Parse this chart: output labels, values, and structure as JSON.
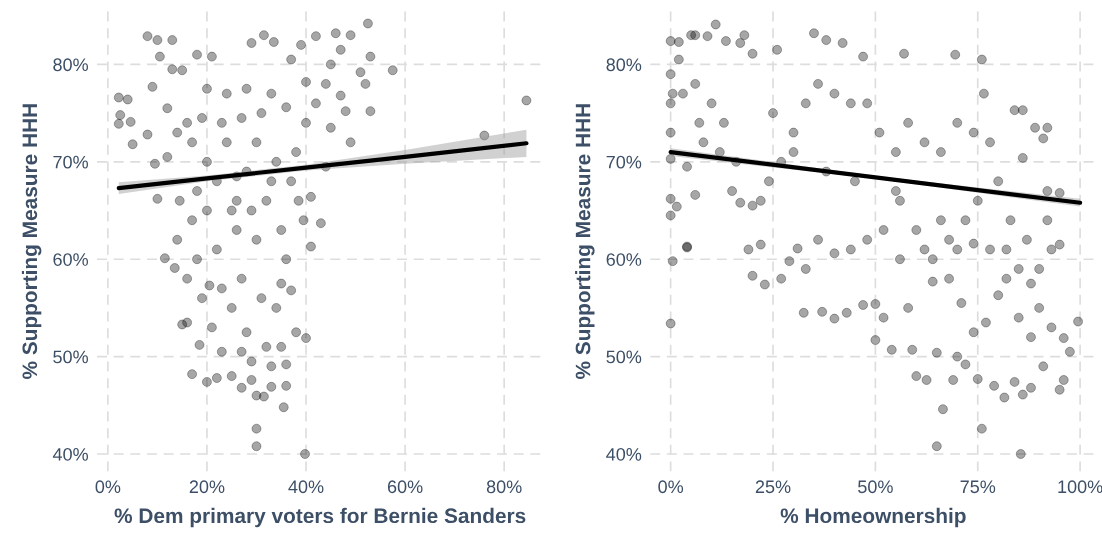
{
  "chart_data": [
    {
      "type": "scatter",
      "xlabel": "% Dem primary voters for Bernie Sanders",
      "ylabel": "% Supporting Measure HHH",
      "grid": true,
      "xlim": [
        -2.2,
        87.9
      ],
      "ylim": [
        38.2,
        85.5
      ],
      "xticks": [
        {
          "value": 0,
          "label": "0%"
        },
        {
          "value": 20,
          "label": "20%"
        },
        {
          "value": 40,
          "label": "40%"
        },
        {
          "value": 60,
          "label": "60%"
        },
        {
          "value": 80,
          "label": "80%"
        }
      ],
      "yticks": [
        {
          "value": 40,
          "label": "40%"
        },
        {
          "value": 50,
          "label": "50%"
        },
        {
          "value": 60,
          "label": "60%"
        },
        {
          "value": 70,
          "label": "70%"
        },
        {
          "value": 80,
          "label": "80%"
        }
      ],
      "series": [
        {
          "marker": "circle",
          "color": "#000000",
          "x": [
            2.2,
            2.5,
            2.2,
            4,
            4.6,
            5,
            8,
            10,
            13,
            10.5,
            9,
            8,
            9.5,
            10,
            11.5,
            13.5,
            15,
            16,
            17,
            20,
            22,
            25,
            27,
            29,
            30,
            31.5,
            35.5,
            30,
            30,
            39.8,
            33,
            36,
            40,
            38,
            84.5,
            76,
            57.5,
            53,
            52.5,
            53,
            49,
            46,
            42,
            31.5,
            29,
            18,
            21,
            49,
            44,
            41,
            43,
            41,
            39.5,
            38.5,
            33.5,
            39,
            51,
            52,
            48,
            45,
            47,
            44,
            40,
            36,
            37,
            33,
            28,
            24,
            20,
            15,
            13,
            12,
            14,
            17,
            20,
            12,
            14.5,
            18,
            22,
            26,
            28,
            24,
            30,
            34,
            38,
            32,
            35,
            36,
            30,
            26,
            22,
            18,
            16,
            19,
            23,
            27,
            31,
            34,
            25,
            21,
            28,
            32,
            23,
            27,
            35,
            18.5,
            29,
            33,
            14,
            17,
            20,
            16,
            19,
            23,
            27,
            31,
            26,
            25,
            29,
            33,
            37,
            40,
            42,
            45,
            47,
            35,
            37,
            20.5,
            36
          ],
          "values": [
            76.6,
            74.8,
            73.9,
            76.4,
            74.1,
            71.8,
            82.9,
            82.5,
            82.5,
            80.8,
            77.7,
            72.8,
            69.8,
            66.2,
            60.1,
            59.1,
            53.3,
            53.5,
            48.2,
            47.4,
            47.8,
            48,
            46.8,
            47.6,
            46,
            45.9,
            44.8,
            42.6,
            40.8,
            40,
            46.9,
            47,
            51.9,
            52.5,
            76.3,
            72.7,
            79.4,
            75.2,
            84.2,
            80.8,
            83,
            83.2,
            82.9,
            83,
            82.2,
            81,
            80.8,
            72,
            69.5,
            66.4,
            63.7,
            61.3,
            64,
            66,
            82.3,
            82,
            79.2,
            78,
            75.2,
            73.5,
            76.8,
            78,
            78.2,
            75.6,
            80.5,
            77,
            77.5,
            77,
            77.5,
            79.4,
            79.5,
            75.5,
            73,
            72,
            70,
            70.5,
            66,
            67,
            68,
            68.5,
            69,
            72,
            72,
            70,
            71,
            66,
            63,
            60,
            62,
            63,
            61,
            60,
            58,
            56,
            57,
            58,
            56,
            55,
            55,
            53,
            52.5,
            51,
            50.5,
            50.5,
            51,
            51.2,
            49.5,
            49,
            62,
            64,
            65,
            74,
            74.5,
            74,
            74.5,
            75,
            66,
            65,
            65,
            68,
            68,
            74,
            76,
            80,
            81.5,
            57.5,
            56.8,
            57.3,
            49.2
          ]
        },
        {
          "type": "line",
          "color": "#000000",
          "x": [
            2.2,
            20,
            40,
            60,
            84.5
          ],
          "values": [
            67.3,
            68.3,
            69.4,
            70.5,
            71.9
          ],
          "lower": [
            66.7,
            68.0,
            69.1,
            69.8,
            70.5
          ],
          "upper": [
            67.9,
            68.6,
            69.7,
            71.2,
            73.3
          ]
        }
      ]
    },
    {
      "type": "scatter",
      "xlabel": "% Homeownership",
      "ylabel": "% Supporting Measure HHH",
      "grid": true,
      "xlim": [
        -5,
        104
      ],
      "ylim": [
        38.2,
        85.5
      ],
      "xticks": [
        {
          "value": 0,
          "label": "0%"
        },
        {
          "value": 25,
          "label": "25%"
        },
        {
          "value": 50,
          "label": "50%"
        },
        {
          "value": 75,
          "label": "75%"
        },
        {
          "value": 100,
          "label": "100%"
        }
      ],
      "yticks": [
        {
          "value": 40,
          "label": "40%"
        },
        {
          "value": 50,
          "label": "50%"
        },
        {
          "value": 60,
          "label": "60%"
        },
        {
          "value": 70,
          "label": "70%"
        },
        {
          "value": 80,
          "label": "80%"
        }
      ],
      "series": [
        {
          "marker": "circle",
          "color": "#000000",
          "x": [
            0,
            0.5,
            0,
            0,
            1.5,
            4,
            4,
            6,
            0,
            2,
            5,
            6,
            9,
            11,
            13.5,
            17,
            18,
            20,
            26,
            35,
            38,
            42,
            47,
            57,
            69.5,
            76,
            76.5,
            0,
            0,
            0,
            0,
            3,
            6,
            10,
            13,
            8,
            4,
            12,
            16,
            15,
            17,
            20,
            22,
            24,
            27,
            30,
            33,
            36,
            40,
            44,
            48,
            51,
            55,
            58,
            62,
            66,
            70,
            74,
            78,
            84,
            86,
            89,
            91,
            92,
            95,
            92,
            86,
            80,
            75,
            72,
            68,
            64,
            60,
            56,
            52,
            48,
            44,
            40,
            36,
            33,
            29,
            27,
            23,
            20,
            19,
            22,
            31,
            32.5,
            37,
            40,
            43,
            47,
            50,
            52,
            50,
            54,
            59,
            60,
            62.5,
            65,
            66.5,
            65,
            69,
            70,
            72,
            75,
            76,
            79,
            81.5,
            84,
            85.5,
            86,
            88,
            91,
            95,
            96,
            97.5,
            99.5,
            96,
            93,
            90,
            88,
            85,
            82,
            80,
            77,
            74,
            71,
            68,
            64,
            58,
            56,
            62,
            66,
            70,
            74,
            78,
            83,
            87,
            90,
            93,
            92,
            95,
            88,
            85,
            82,
            7,
            25,
            30,
            38,
            45,
            55,
            2,
            0.5
          ],
          "values": [
            53.4,
            59.8,
            64.5,
            66.2,
            65.4,
            61.2,
            61.3,
            66.6,
            82.4,
            82.3,
            83,
            83,
            82.9,
            84.1,
            82.4,
            82.2,
            83,
            81.1,
            81.5,
            83.2,
            82.5,
            82.2,
            80.8,
            81.1,
            81,
            80.5,
            77,
            79,
            76,
            73,
            70.3,
            77,
            78,
            76,
            74,
            72,
            69.5,
            71,
            70,
            67,
            65.8,
            65.5,
            66,
            68,
            70,
            73,
            76,
            78,
            77,
            76,
            76,
            73,
            71,
            74,
            72,
            71,
            74,
            73,
            72,
            75.3,
            75.3,
            73.5,
            72.4,
            73.5,
            66.8,
            67,
            70.4,
            68,
            66,
            64,
            62,
            60,
            63,
            66,
            63,
            62,
            61,
            60.6,
            62,
            59,
            59.8,
            58,
            57.4,
            58.3,
            61,
            61.5,
            61.1,
            54.5,
            54.6,
            53.9,
            54.5,
            55.3,
            55.4,
            54,
            51.7,
            50.7,
            50.7,
            48,
            47.6,
            50.4,
            44.6,
            40.8,
            47.6,
            50,
            49.2,
            47.7,
            42.6,
            47,
            45.8,
            47.4,
            40,
            46.1,
            46.8,
            49,
            46.6,
            47.6,
            50.5,
            53.6,
            51.9,
            53,
            55,
            57.5,
            59,
            61,
            56.3,
            53.5,
            52.5,
            55.5,
            58,
            57.7,
            55,
            60,
            61,
            64,
            61,
            61.6,
            61,
            64,
            62,
            59,
            61,
            64,
            61.5,
            52,
            54,
            58,
            74,
            75,
            71,
            69,
            68,
            67,
            80.5,
            77
          ]
        },
        {
          "type": "line",
          "color": "#000000",
          "x": [
            0,
            50,
            100
          ],
          "values": [
            71.0,
            68.4,
            65.8
          ],
          "lower": [
            70.6,
            68.25,
            65.4
          ],
          "upper": [
            71.4,
            68.55,
            66.2
          ]
        }
      ]
    }
  ]
}
